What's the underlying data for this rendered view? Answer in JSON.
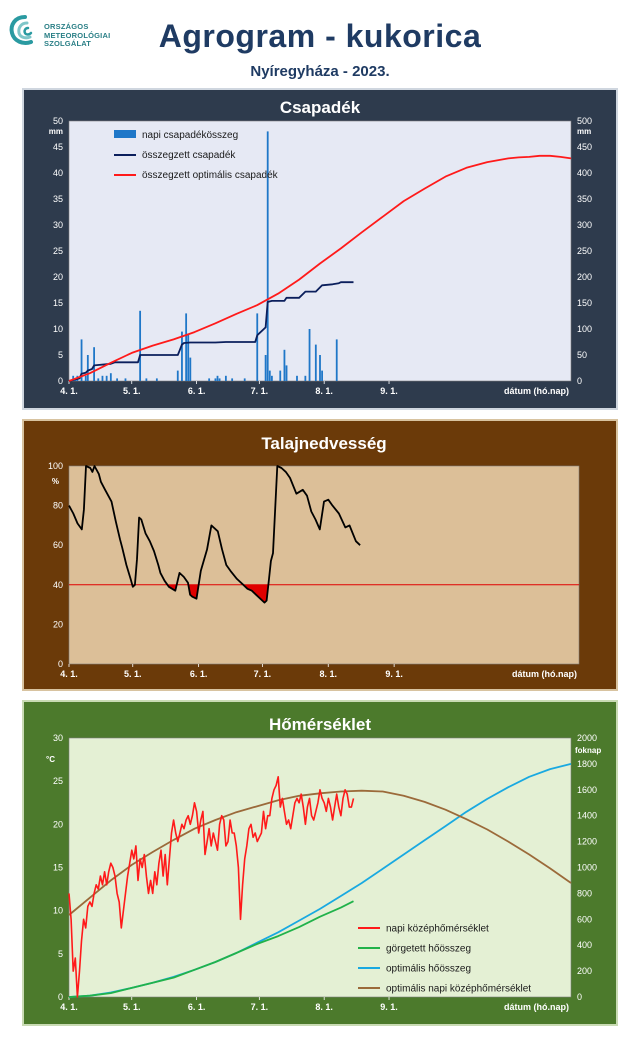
{
  "header": {
    "org_name": "ORSZÁGOS\nMETEOROLÓGIAI\nSZOLGÁLAT",
    "title": "Agrogram - kukorica",
    "subtitle": "Nyíregyháza - 2023."
  },
  "colors": {
    "daily_precip": "#1f77c8",
    "cum_precip": "#0b1f5c",
    "optimal": "#ff1a1a",
    "soil": "#000000",
    "threshold": "#e00000",
    "temp_daily": "#ff1a1a",
    "rolling_heat": "#21b24a",
    "optimal_heat": "#19a9e1",
    "optimal_temp": "#9b6a3a"
  },
  "chart_data": [
    {
      "type": "bar+line",
      "title": "Csapadék",
      "y_left_unit": "mm",
      "y_right_unit": "mm",
      "ylim_left": [
        0,
        50
      ],
      "ylim_right": [
        0,
        500
      ],
      "y_ticks_left": [
        "0",
        "5",
        "10",
        "15",
        "20",
        "25",
        "30",
        "35",
        "40",
        "45",
        "50"
      ],
      "y_ticks_right": [
        "0",
        "50",
        "100",
        "150",
        "200",
        "250",
        "300",
        "350",
        "400",
        "450",
        "500"
      ],
      "x_ticks": [
        "4. 1.",
        "5. 1.",
        "6. 1.",
        "7. 1.",
        "8. 1.",
        "9. 1."
      ],
      "x_label": "dátum (hó.nap)",
      "legend": [
        "napi csapadékösszeg",
        "összegzett csapadék",
        "összegzett optimális  csapadék"
      ],
      "series": [
        {
          "name": "napi csapadékösszeg",
          "axis": "left",
          "kind": "bar",
          "x": [
            2,
            3,
            4,
            6,
            8,
            9,
            12,
            14,
            16,
            18,
            20,
            23,
            27,
            34,
            37,
            42,
            52,
            54,
            56,
            57,
            58,
            67,
            70,
            71,
            72,
            75,
            78,
            84,
            90,
            94,
            95,
            96,
            97,
            101,
            103,
            104,
            109,
            113,
            115,
            118,
            120,
            121,
            128
          ],
          "y": [
            1,
            0.5,
            1,
            8,
            1,
            5,
            6.5,
            0.5,
            1,
            1,
            1.5,
            0.5,
            0.5,
            13.5,
            0.5,
            0.5,
            2,
            9.5,
            13,
            9,
            4.5,
            0.5,
            0.5,
            1,
            0.5,
            1,
            0.5,
            0.5,
            13,
            5,
            48,
            2,
            1,
            2,
            6,
            3,
            1,
            1,
            10,
            7,
            5,
            2,
            8
          ]
        },
        {
          "name": "összegzett csapadék",
          "axis": "right",
          "x": [
            0,
            5,
            6,
            8,
            9,
            11,
            12,
            20,
            22,
            33,
            34,
            52,
            53,
            54,
            55,
            58,
            62,
            70,
            75,
            89,
            90,
            94,
            95,
            96,
            97,
            103,
            104,
            110,
            113,
            118,
            121,
            126,
            129,
            130,
            136
          ],
          "y": [
            0,
            5,
            14,
            16,
            20,
            23,
            30,
            33,
            36,
            36,
            50,
            50,
            60,
            70,
            73,
            74,
            74,
            74,
            75,
            75,
            88,
            103,
            152,
            153,
            154,
            154,
            160,
            160,
            172,
            172,
            184,
            186,
            188,
            190,
            190
          ]
        },
        {
          "name": "összegzett optimális  csapadék",
          "axis": "right",
          "x": [
            0,
            10,
            20,
            30,
            40,
            50,
            60,
            70,
            80,
            90,
            100,
            110,
            120,
            130,
            140,
            150,
            160,
            170,
            180,
            190,
            200,
            210,
            215,
            220,
            225,
            230,
            235,
            240
          ],
          "y": [
            0,
            15,
            35,
            54,
            68,
            80,
            94,
            111,
            129,
            146,
            168,
            195,
            226,
            255,
            286,
            316,
            346,
            370,
            393,
            410,
            421,
            428,
            430,
            431,
            433,
            433,
            431,
            428
          ]
        }
      ]
    },
    {
      "type": "line",
      "title": "Talajnedvesség",
      "y_unit": "%",
      "ylim": [
        0,
        100
      ],
      "y_ticks": [
        "0",
        "20",
        "40",
        "60",
        "80",
        "100"
      ],
      "x_ticks": [
        "4. 1.",
        "5. 1.",
        "6. 1.",
        "7. 1.",
        "8. 1.",
        "9. 1."
      ],
      "x_label": "dátum (hó.nap)",
      "threshold": 40,
      "series": [
        {
          "name": "talajnedvesség",
          "x": [
            0,
            2,
            4,
            6,
            7,
            8,
            10,
            11,
            12,
            14,
            15,
            17,
            20,
            22,
            24,
            25,
            27,
            29,
            30,
            31,
            32,
            33,
            34,
            36,
            38,
            40,
            42,
            43,
            45,
            47,
            50,
            52,
            54,
            56,
            57,
            58,
            60,
            62,
            65,
            67,
            70,
            72,
            74,
            76,
            79,
            82,
            84,
            86,
            88,
            90,
            92,
            93,
            94,
            95,
            96,
            98,
            100,
            102,
            104,
            107,
            110,
            112,
            114,
            116,
            118,
            120,
            122,
            124,
            127,
            130,
            132,
            135,
            137
          ],
          "y": [
            80,
            76,
            71,
            68,
            78,
            100,
            99,
            97,
            100,
            96,
            92,
            88,
            82,
            72,
            63,
            59,
            50,
            43,
            39,
            40,
            53,
            74,
            73,
            66,
            62,
            57,
            50,
            46,
            42,
            39,
            37,
            46,
            44,
            41,
            35,
            34,
            33,
            47,
            58,
            70,
            67,
            58,
            50,
            47,
            43,
            40,
            38,
            37,
            35,
            33,
            31,
            32,
            42,
            52,
            56,
            100,
            99,
            97,
            94,
            86,
            88,
            85,
            77,
            73,
            68,
            82,
            83,
            80,
            76,
            69,
            70,
            62,
            60
          ]
        }
      ]
    },
    {
      "type": "line",
      "title": "Hőmérséklet",
      "y_left_unit": "°C",
      "y_right_unit": "foknap",
      "ylim_left": [
        0,
        30
      ],
      "ylim_right": [
        0,
        2000
      ],
      "y_ticks_left": [
        "0",
        "5",
        "10",
        "15",
        "20",
        "25",
        "30"
      ],
      "y_ticks_right": [
        "0",
        "200",
        "400",
        "600",
        "800",
        "1000",
        "1200",
        "1400",
        "1600",
        "1800",
        "2000"
      ],
      "x_ticks": [
        "4. 1.",
        "5. 1.",
        "6. 1.",
        "7. 1.",
        "8. 1.",
        "9. 1."
      ],
      "x_label": "dátum (hó.nap)",
      "legend": [
        "napi középhőmérséklet",
        "görgetett hőösszeg",
        "optimális hőösszeg",
        "optimális napi középhőmérséklet"
      ],
      "series": [
        {
          "name": "napi középhőmérséklet",
          "axis": "left",
          "x": [
            0,
            1,
            2,
            3,
            4,
            5,
            6,
            7,
            8,
            9,
            10,
            11,
            12,
            13,
            14,
            15,
            16,
            17,
            18,
            19,
            20,
            21,
            22,
            23,
            24,
            25,
            26,
            27,
            28,
            29,
            30,
            31,
            32,
            33,
            34,
            35,
            36,
            37,
            38,
            39,
            40,
            41,
            42,
            43,
            44,
            45,
            46,
            47,
            48,
            49,
            50,
            51,
            52,
            53,
            54,
            55,
            56,
            57,
            58,
            59,
            60,
            61,
            62,
            63,
            64,
            65,
            66,
            67,
            68,
            69,
            70,
            71,
            72,
            73,
            74,
            75,
            76,
            77,
            78,
            79,
            80,
            81,
            82,
            83,
            84,
            85,
            86,
            87,
            88,
            89,
            90,
            91,
            92,
            93,
            94,
            95,
            96,
            97,
            98,
            99,
            100,
            101,
            102,
            103,
            104,
            105,
            106,
            107,
            108,
            109,
            110,
            111,
            112,
            113,
            114,
            115,
            116,
            117,
            118,
            119,
            120,
            121,
            122,
            123,
            124,
            125,
            126,
            127,
            128,
            129,
            130,
            131,
            132,
            133,
            134,
            135,
            136
          ],
          "y": [
            12,
            9,
            3,
            4.5,
            0,
            3,
            6.5,
            9,
            8,
            10.5,
            11,
            10.5,
            12,
            13,
            12.5,
            14,
            13,
            14.5,
            13,
            14.5,
            15.5,
            15,
            14,
            12,
            11,
            8,
            10,
            12,
            14,
            15.5,
            17,
            16,
            17.5,
            13.5,
            16,
            15,
            16.5,
            14,
            12,
            13.5,
            12,
            14.5,
            13,
            15.5,
            17,
            14,
            16.5,
            13,
            16,
            19,
            20.5,
            19,
            18,
            19,
            20,
            19.5,
            20.5,
            21,
            20,
            21,
            22.5,
            21.5,
            19,
            20.5,
            21.5,
            16.5,
            18,
            19.5,
            17.5,
            19,
            18,
            17,
            20,
            21,
            20.5,
            17.5,
            18,
            20.5,
            19,
            19,
            17.5,
            15,
            9,
            13,
            16,
            17.5,
            19.5,
            20,
            18.5,
            19,
            18,
            18.5,
            19,
            21.5,
            19.5,
            21,
            21,
            23,
            24,
            24.5,
            25.5,
            22,
            23,
            21.5,
            20,
            20.5,
            19.5,
            21,
            22.5,
            23,
            22.5,
            23.5,
            22,
            20,
            22,
            23,
            21,
            20.5,
            21.5,
            22.5,
            24,
            23,
            22.5,
            21.5,
            23,
            22,
            20.5,
            22,
            23.5,
            22,
            21,
            23,
            24,
            23.5,
            22,
            22,
            23
          ]
        },
        {
          "name": "görgetett hőösszeg",
          "axis": "right",
          "x": [
            0,
            10,
            20,
            30,
            40,
            50,
            60,
            70,
            80,
            90,
            100,
            110,
            120,
            130,
            136
          ],
          "y": [
            0,
            10,
            30,
            70,
            110,
            150,
            210,
            270,
            340,
            410,
            470,
            540,
            620,
            690,
            740
          ]
        },
        {
          "name": "optimális hőösszeg",
          "axis": "right",
          "x": [
            0,
            10,
            20,
            30,
            40,
            50,
            60,
            70,
            80,
            90,
            100,
            110,
            120,
            130,
            140,
            150,
            160,
            170,
            180,
            190,
            200,
            210,
            220,
            230,
            240
          ],
          "y": [
            0,
            10,
            35,
            70,
            110,
            155,
            210,
            270,
            340,
            420,
            500,
            590,
            680,
            780,
            880,
            990,
            1100,
            1210,
            1320,
            1430,
            1530,
            1620,
            1700,
            1760,
            1800
          ]
        },
        {
          "name": "optimális napi középhőmérséklet",
          "axis": "left",
          "x": [
            0,
            10,
            20,
            30,
            40,
            50,
            60,
            70,
            80,
            90,
            100,
            110,
            120,
            130,
            140,
            150,
            160,
            170,
            180,
            190,
            200,
            210,
            220,
            230,
            240
          ],
          "y": [
            9.5,
            11.5,
            13.5,
            15.3,
            16.8,
            18.2,
            19.5,
            20.5,
            21.4,
            22.1,
            22.8,
            23.3,
            23.6,
            23.8,
            23.9,
            23.8,
            23.3,
            22.6,
            21.7,
            20.6,
            19.4,
            18,
            16.5,
            14.9,
            13.2
          ]
        }
      ]
    }
  ]
}
